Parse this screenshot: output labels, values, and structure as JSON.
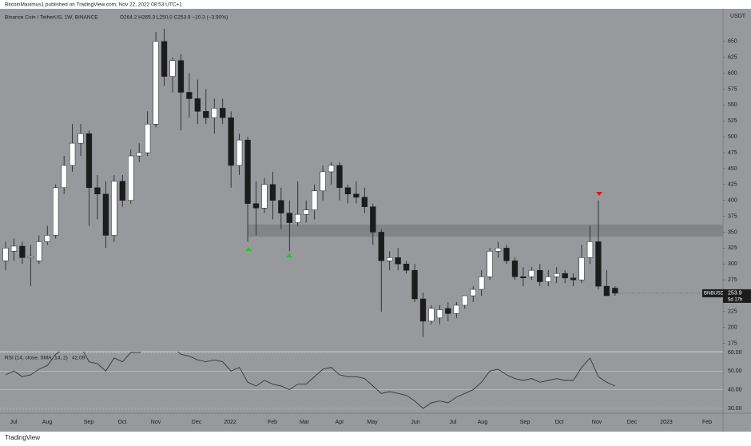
{
  "chart_data": {
    "type": "candlestick",
    "publisher": "BitcoinMaximus1 published on TradingView.com, Nov 22, 2022 08:53 UTC+1",
    "title": "Binance Coin / TetherUS, 1W, BINANCE",
    "ohlc_text": "O264.2 H265.3 L250.0 C253.9 −10.3 (−3.90%)",
    "currency": "USDT",
    "symbol": "BNBUSDT",
    "last_price": 253.9,
    "countdown": "5d 17h",
    "brand": "TradingView",
    "colors": {
      "background": "#97999d",
      "up": "#ffffff",
      "down": "#1c1c1c",
      "zone": "#7d7f83",
      "rsi": "#2a2a2a"
    },
    "open": [
      305,
      320,
      328,
      310,
      305,
      335,
      345,
      420,
      455,
      490,
      505,
      420,
      410,
      345,
      430,
      400,
      470,
      475,
      520,
      650,
      595,
      620,
      570,
      560,
      540,
      530,
      545,
      530,
      455,
      495,
      395,
      388,
      425,
      400,
      380,
      365,
      378,
      385,
      415,
      445,
      455,
      420,
      410,
      405,
      390,
      350,
      305,
      310,
      300,
      290,
      245,
      210,
      215,
      230,
      222,
      235,
      250,
      260,
      280,
      320,
      325,
      305,
      280,
      280,
      290,
      272,
      280,
      285,
      278,
      275,
      310,
      335,
      265,
      262
    ],
    "high": [
      335,
      340,
      335,
      330,
      345,
      360,
      425,
      470,
      520,
      520,
      510,
      440,
      430,
      440,
      440,
      480,
      490,
      540,
      665,
      670,
      625,
      630,
      600,
      590,
      575,
      560,
      560,
      540,
      505,
      500,
      430,
      435,
      445,
      420,
      400,
      430,
      400,
      425,
      455,
      460,
      460,
      425,
      430,
      420,
      395,
      355,
      320,
      325,
      305,
      300,
      255,
      235,
      235,
      240,
      240,
      250,
      265,
      290,
      325,
      335,
      330,
      310,
      295,
      295,
      300,
      290,
      295,
      290,
      285,
      330,
      360,
      400,
      290,
      265
    ],
    "low": [
      290,
      305,
      300,
      265,
      300,
      330,
      340,
      410,
      445,
      470,
      360,
      370,
      325,
      335,
      390,
      395,
      460,
      470,
      515,
      580,
      570,
      510,
      530,
      520,
      520,
      505,
      520,
      420,
      440,
      335,
      345,
      380,
      370,
      355,
      320,
      360,
      365,
      370,
      400,
      425,
      400,
      395,
      395,
      380,
      330,
      225,
      290,
      290,
      285,
      240,
      185,
      205,
      205,
      210,
      215,
      230,
      240,
      250,
      275,
      310,
      300,
      275,
      265,
      275,
      265,
      265,
      270,
      270,
      265,
      270,
      300,
      260,
      255,
      250
    ],
    "close": [
      325,
      328,
      310,
      312,
      335,
      345,
      420,
      455,
      490,
      505,
      420,
      410,
      345,
      430,
      400,
      470,
      475,
      520,
      650,
      595,
      620,
      570,
      560,
      540,
      530,
      545,
      530,
      455,
      495,
      395,
      388,
      425,
      400,
      380,
      365,
      378,
      385,
      415,
      445,
      455,
      420,
      410,
      405,
      390,
      350,
      305,
      310,
      300,
      290,
      245,
      210,
      230,
      228,
      222,
      235,
      250,
      260,
      280,
      320,
      325,
      305,
      280,
      278,
      290,
      272,
      280,
      285,
      278,
      275,
      310,
      335,
      265,
      250,
      254
    ],
    "ylim": [
      162,
      680
    ],
    "yticks": [
      175,
      200,
      225,
      250,
      275,
      300,
      325,
      350,
      375,
      400,
      425,
      450,
      475,
      500,
      525,
      550,
      575,
      600,
      625,
      650
    ],
    "zone": [
      343,
      362
    ],
    "xtick_labels": [
      "Jul",
      "Aug",
      "Sep",
      "Oct",
      "Nov",
      "Dec",
      "2022",
      "Feb",
      "Mar",
      "Apr",
      "May",
      "Jun",
      "Jul",
      "Aug",
      "Sep",
      "Oct",
      "Nov",
      "Dec",
      "2023",
      "Feb"
    ],
    "rsi": {
      "label": "RSI (14, close, SMA, 14, 2)",
      "last": 42.09,
      "values": [
        48,
        50,
        47,
        48,
        51,
        53,
        59,
        62,
        64,
        63,
        55,
        54,
        50,
        57,
        55,
        60,
        60,
        62,
        70,
        62,
        63,
        59,
        58,
        56,
        55,
        56,
        55,
        50,
        52,
        44,
        42,
        45,
        43,
        42,
        40,
        43,
        43,
        47,
        51,
        52,
        48,
        47,
        47,
        46,
        42,
        38,
        39,
        38,
        37,
        34,
        30,
        33,
        34,
        33,
        36,
        38,
        40,
        44,
        50,
        51,
        48,
        46,
        45,
        46,
        44,
        45,
        46,
        45,
        45,
        52,
        57,
        47,
        44,
        42
      ],
      "ylim": [
        27.4,
        60.4
      ],
      "yticks": [
        {
          "value": 30,
          "label": "30.00"
        },
        {
          "value": 40,
          "label": "40.00"
        },
        {
          "value": 50,
          "label": "50.00"
        },
        {
          "value": 60,
          "label": "60.00"
        }
      ]
    }
  }
}
